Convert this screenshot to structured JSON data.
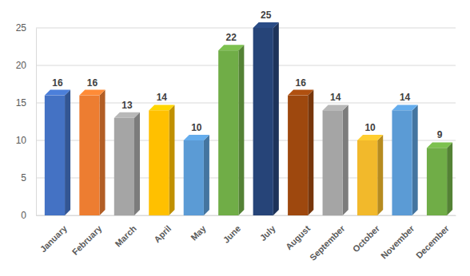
{
  "chart_data": {
    "type": "bar",
    "categories": [
      "January",
      "February",
      "March",
      "April",
      "May",
      "June",
      "July",
      "August",
      "September",
      "October",
      "November",
      "December"
    ],
    "values": [
      16,
      16,
      13,
      14,
      10,
      22,
      25,
      16,
      14,
      10,
      14,
      9
    ],
    "colors": [
      "#4472c4",
      "#ed7d31",
      "#a5a5a5",
      "#ffc000",
      "#5b9bd5",
      "#70ad47",
      "#264478",
      "#9e480e",
      "#a5a5a5",
      "#f2b92b",
      "#5b9bd5",
      "#70ad47"
    ],
    "ylim": [
      0,
      25
    ],
    "yticks": [
      0,
      5,
      10,
      15,
      20,
      25
    ],
    "grid": true,
    "data_labels": true
  }
}
